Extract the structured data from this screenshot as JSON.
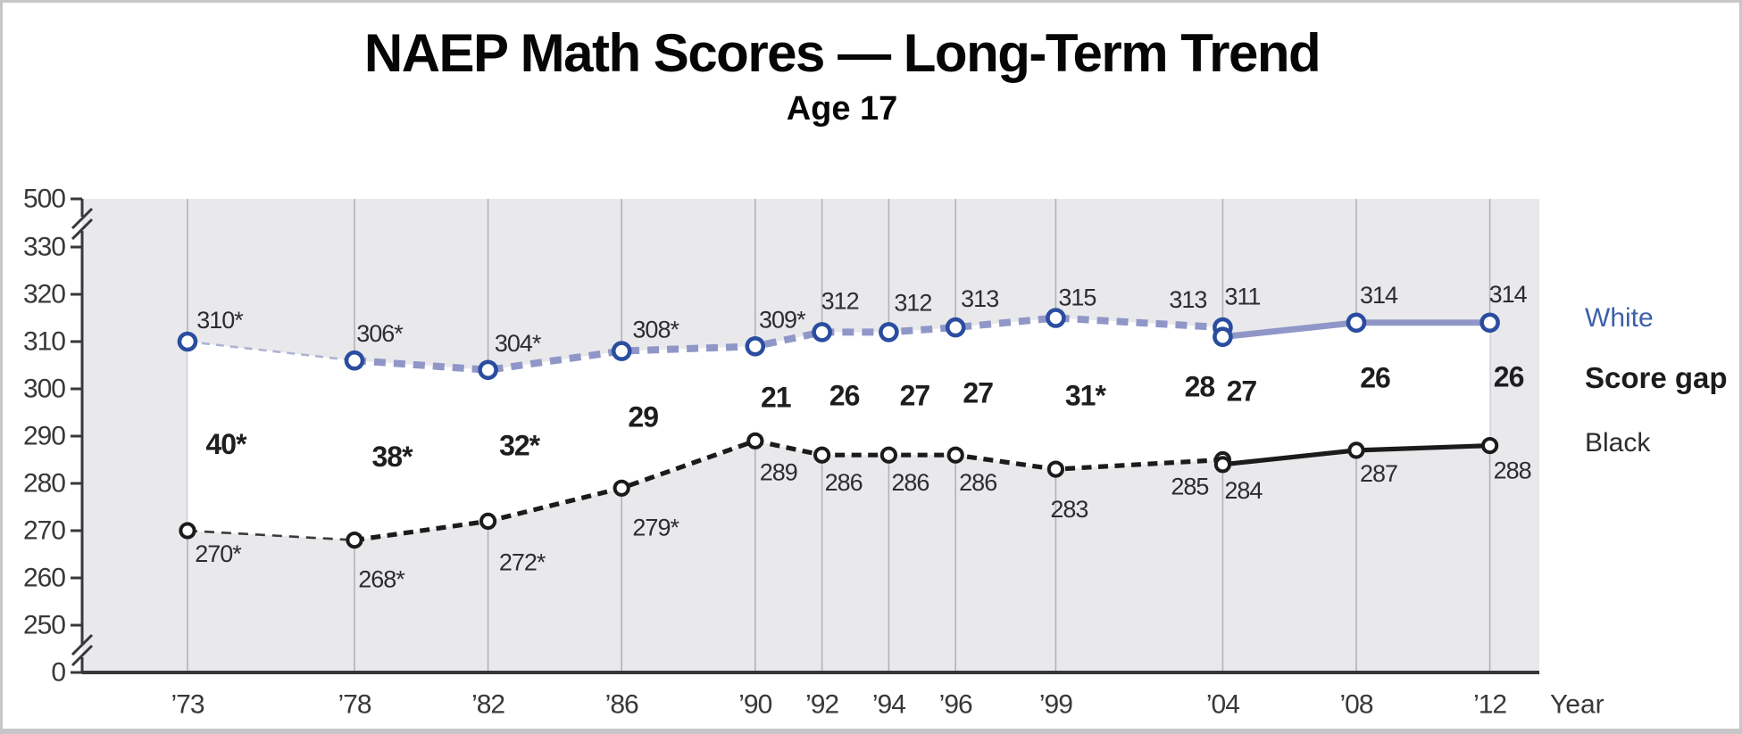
{
  "title": "NAEP Math Scores — Long-Term Trend",
  "subtitle": "Age 17",
  "legend": {
    "entries": [
      {
        "id": "white",
        "label": "White",
        "color": "#3c5fad",
        "bold": false
      },
      {
        "id": "gap",
        "label": "Score gap",
        "color": "#1d1b1d",
        "bold": true
      },
      {
        "id": "black",
        "label": "Black",
        "color": "#2e2c2e",
        "bold": false
      }
    ]
  },
  "chart_data": {
    "type": "line",
    "title": "NAEP Math Scores — Long-Term Trend",
    "subtitle": "Age 17",
    "grid": "vertical",
    "legend_position": "right",
    "colors": {
      "plot_bg": "#e9e9eb",
      "band_fill": "#ffffff",
      "gridline": "#b3b3b6",
      "axis": "#39373a",
      "label_text": "#2e2c2e",
      "gap_text": "#1f1d1f"
    },
    "x_axis": {
      "label": "Year",
      "ticks": [
        {
          "year": 1973,
          "label": "’73"
        },
        {
          "year": 1978,
          "label": "’78"
        },
        {
          "year": 1982,
          "label": "’82"
        },
        {
          "year": 1986,
          "label": "’86"
        },
        {
          "year": 1990,
          "label": "’90"
        },
        {
          "year": 1992,
          "label": "’92"
        },
        {
          "year": 1994,
          "label": "’94"
        },
        {
          "year": 1996,
          "label": "’96"
        },
        {
          "year": 1999,
          "label": "’99"
        },
        {
          "year": 2004,
          "label": "’04"
        },
        {
          "year": 2008,
          "label": "’08"
        },
        {
          "year": 2012,
          "label": "’12"
        }
      ]
    },
    "y_axis": {
      "ticks": [
        {
          "value": 500,
          "label": "500"
        },
        {
          "value": 330,
          "label": "330"
        },
        {
          "value": 320,
          "label": "320"
        },
        {
          "value": 310,
          "label": "310"
        },
        {
          "value": 300,
          "label": "300"
        },
        {
          "value": 290,
          "label": "290"
        },
        {
          "value": 280,
          "label": "280"
        },
        {
          "value": 270,
          "label": "270"
        },
        {
          "value": 260,
          "label": "260"
        },
        {
          "value": 250,
          "label": "250"
        },
        {
          "value": 0,
          "label": "0"
        }
      ],
      "breaks_between": [
        [
          "500",
          "330"
        ],
        [
          "250",
          "0"
        ]
      ]
    },
    "series": [
      {
        "id": "white-original",
        "group": "White",
        "format": "original",
        "style": "dashed",
        "thin_first_segment": true,
        "color": "#9097c8",
        "thin_color": "#aeb3d2",
        "marker_color": "#2a4da0",
        "years": [
          1973,
          1978,
          1982,
          1986,
          1990,
          1992,
          1994,
          1996,
          1999,
          2004
        ],
        "values": [
          310,
          306,
          304,
          308,
          309,
          312,
          312,
          313,
          315,
          313
        ],
        "labels": [
          "310*",
          "306*",
          "304*",
          "308*",
          "309*",
          "312",
          "312",
          "313",
          "315",
          "313"
        ]
      },
      {
        "id": "white-revised",
        "group": "White",
        "format": "revised",
        "style": "solid",
        "thin_first_segment": false,
        "color": "#9097c8",
        "marker_color": "#2a4da0",
        "years": [
          2004,
          2008,
          2012
        ],
        "values": [
          311,
          314,
          314
        ],
        "labels": [
          "311",
          "314",
          "314"
        ]
      },
      {
        "id": "black-original",
        "group": "Black",
        "format": "original",
        "style": "dashed",
        "thin_first_segment": true,
        "color": "#1c1a1b",
        "thin_color": "#3a3a3a",
        "marker_color": "#1c1a1b",
        "years": [
          1973,
          1978,
          1982,
          1986,
          1990,
          1992,
          1994,
          1996,
          1999,
          2004
        ],
        "values": [
          270,
          268,
          272,
          279,
          289,
          286,
          286,
          286,
          283,
          285
        ],
        "labels": [
          "270*",
          "268*",
          "272*",
          "279*",
          "289",
          "286",
          "286",
          "286",
          "283",
          "285"
        ]
      },
      {
        "id": "black-revised",
        "group": "Black",
        "format": "revised",
        "style": "solid",
        "thin_first_segment": false,
        "color": "#1c1a1b",
        "marker_color": "#1c1a1b",
        "years": [
          2004,
          2008,
          2012
        ],
        "values": [
          284,
          287,
          288
        ],
        "labels": [
          "284",
          "287",
          "288"
        ]
      }
    ],
    "score_gaps": [
      {
        "year": 1973,
        "label": "40*",
        "format": "original"
      },
      {
        "year": 1978,
        "label": "38*",
        "format": "original"
      },
      {
        "year": 1982,
        "label": "32*",
        "format": "original"
      },
      {
        "year": 1986,
        "label": "29",
        "format": "original"
      },
      {
        "year": 1990,
        "label": "21",
        "format": "original"
      },
      {
        "year": 1992,
        "label": "26",
        "format": "original"
      },
      {
        "year": 1994,
        "label": "27",
        "format": "original"
      },
      {
        "year": 1996,
        "label": "27",
        "format": "original"
      },
      {
        "year": 1999,
        "label": "31*",
        "format": "original"
      },
      {
        "year": 2004,
        "label": "28",
        "format": "original"
      },
      {
        "year": 2004,
        "label": "27",
        "format": "revised"
      },
      {
        "year": 2008,
        "label": "26",
        "format": "revised"
      },
      {
        "year": 2012,
        "label": "26",
        "format": "revised"
      }
    ]
  }
}
